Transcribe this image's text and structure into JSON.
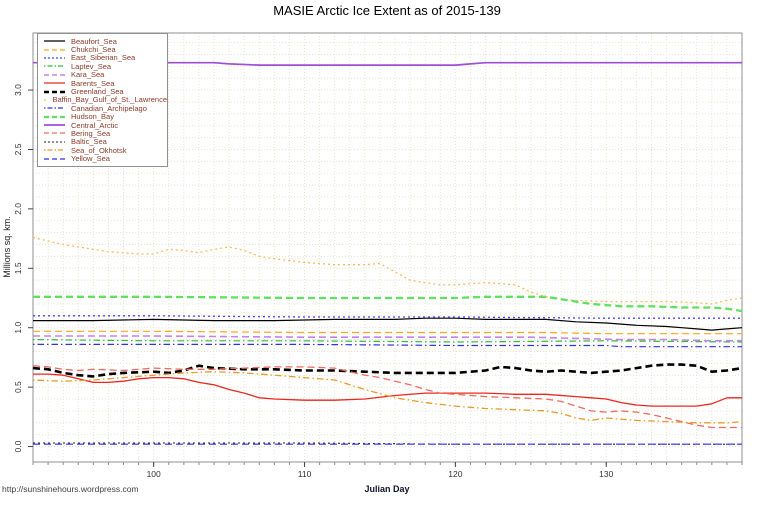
{
  "page": {
    "watermark_url": "http://sunshinehours.wordpress.com"
  },
  "chart_data": {
    "type": "line",
    "title": "MASIE Arctic Ice Extent as of 2015-139",
    "xlabel": "Julian Day",
    "ylabel": "Millions sq. km.",
    "x_range": [
      92,
      139
    ],
    "y_range": [
      -0.13,
      3.48
    ],
    "x_ticks": [
      100,
      110,
      120,
      130
    ],
    "x_tick_labels": [
      "100",
      "110",
      "120",
      "130"
    ],
    "x_minor_tick_step": 1,
    "y_ticks": [
      0.0,
      0.5,
      1.0,
      1.5,
      2.0,
      2.5,
      3.0
    ],
    "y_tick_labels": [
      "0.0",
      "0.5",
      "1.0",
      "1.5",
      "2.0",
      "2.5",
      "3.0"
    ],
    "grid": {
      "on": true,
      "x_step": 1,
      "y_step": 0.1,
      "color": "#e7e4d4"
    },
    "legend_position": "top-left",
    "legend_text_color": "#8a3a28",
    "axis_box_color": "#909090",
    "series": [
      {
        "label": "Beaufort_Sea",
        "color": "#000000",
        "dash": "solid",
        "width": 1.2,
        "x": [
          92,
          96,
          100,
          104,
          108,
          112,
          116,
          118,
          120,
          122,
          124,
          126,
          128,
          130,
          132,
          134,
          135,
          136,
          137,
          138,
          139
        ],
        "y": [
          1.06,
          1.06,
          1.07,
          1.06,
          1.06,
          1.07,
          1.07,
          1.08,
          1.08,
          1.07,
          1.07,
          1.07,
          1.05,
          1.04,
          1.02,
          1.01,
          1.0,
          0.99,
          0.98,
          0.99,
          1.0
        ]
      },
      {
        "label": "Chukchi_Sea",
        "color": "#FFA51E",
        "dash": "dashed",
        "width": 1.2,
        "x": [
          92,
          100,
          110,
          120,
          126,
          130,
          134,
          139
        ],
        "y": [
          0.97,
          0.97,
          0.96,
          0.96,
          0.96,
          0.95,
          0.95,
          0.95
        ]
      },
      {
        "label": "East_Siberian_Sea",
        "color": "#4545F0",
        "dash": "dotted",
        "width": 1.3,
        "x": [
          92,
          100,
          110,
          120,
          130,
          139
        ],
        "y": [
          1.1,
          1.1,
          1.09,
          1.09,
          1.08,
          1.08
        ]
      },
      {
        "label": "Laptev_Sea",
        "color": "#2EBE2E",
        "dash": "dashdot",
        "width": 1.2,
        "x": [
          92,
          100,
          110,
          120,
          130,
          139
        ],
        "y": [
          0.9,
          0.89,
          0.89,
          0.88,
          0.89,
          0.88
        ]
      },
      {
        "label": "Kara_Sea",
        "color": "#C383EB",
        "dash": "dashed",
        "width": 1.6,
        "x": [
          92,
          100,
          110,
          120,
          125,
          128,
          131,
          134,
          137,
          139
        ],
        "y": [
          0.93,
          0.93,
          0.92,
          0.92,
          0.92,
          0.91,
          0.9,
          0.9,
          0.89,
          0.89
        ]
      },
      {
        "label": "Barents_Sea",
        "color": "#E8281E",
        "dash": "solid",
        "width": 1.3,
        "x": [
          92,
          93,
          94,
          95,
          96,
          97,
          98,
          99,
          100,
          101,
          102,
          103,
          104,
          105,
          106,
          107,
          108,
          110,
          112,
          114,
          116,
          118,
          120,
          122,
          124,
          126,
          128,
          129,
          130,
          131,
          132,
          133,
          134,
          135,
          136,
          137,
          138,
          139
        ],
        "y": [
          0.61,
          0.61,
          0.6,
          0.57,
          0.54,
          0.54,
          0.55,
          0.57,
          0.58,
          0.58,
          0.57,
          0.54,
          0.52,
          0.48,
          0.45,
          0.41,
          0.4,
          0.39,
          0.39,
          0.4,
          0.43,
          0.45,
          0.45,
          0.45,
          0.44,
          0.44,
          0.42,
          0.41,
          0.4,
          0.37,
          0.35,
          0.34,
          0.34,
          0.34,
          0.34,
          0.36,
          0.41,
          0.41
        ]
      },
      {
        "label": "Greenland_Sea",
        "color": "#000000",
        "dash": "dashed",
        "width": 2.6,
        "x": [
          92,
          93,
          94,
          95,
          96,
          97,
          98,
          100,
          101,
          102,
          103,
          104,
          106,
          108,
          110,
          112,
          114,
          116,
          118,
          120,
          121,
          122,
          123,
          124,
          125,
          126,
          127,
          128,
          129,
          130,
          131,
          132,
          133,
          134,
          135,
          136,
          137,
          138,
          139
        ],
        "y": [
          0.66,
          0.65,
          0.62,
          0.6,
          0.59,
          0.61,
          0.62,
          0.63,
          0.62,
          0.64,
          0.68,
          0.66,
          0.65,
          0.65,
          0.64,
          0.64,
          0.63,
          0.62,
          0.62,
          0.62,
          0.63,
          0.64,
          0.67,
          0.66,
          0.64,
          0.63,
          0.64,
          0.63,
          0.62,
          0.63,
          0.64,
          0.66,
          0.68,
          0.69,
          0.69,
          0.68,
          0.63,
          0.64,
          0.66
        ]
      },
      {
        "label": "Baffin_Bay_Gulf_of_St._Lawrence",
        "color": "#FFB85C",
        "dash": "dotted",
        "width": 1.3,
        "x": [
          92,
          93,
          94,
          95,
          96,
          97,
          98,
          99,
          100,
          101,
          102,
          103,
          104,
          105,
          106,
          107,
          108,
          110,
          112,
          114,
          115,
          116,
          117,
          118,
          119,
          120,
          121,
          122,
          123,
          124,
          125,
          126,
          127,
          128,
          130,
          132,
          134,
          136,
          137,
          138,
          139
        ],
        "y": [
          1.76,
          1.73,
          1.7,
          1.68,
          1.66,
          1.64,
          1.63,
          1.62,
          1.62,
          1.66,
          1.65,
          1.63,
          1.66,
          1.68,
          1.65,
          1.6,
          1.58,
          1.55,
          1.53,
          1.53,
          1.54,
          1.47,
          1.4,
          1.38,
          1.36,
          1.36,
          1.37,
          1.38,
          1.37,
          1.36,
          1.3,
          1.26,
          1.24,
          1.23,
          1.22,
          1.22,
          1.22,
          1.21,
          1.2,
          1.23,
          1.25
        ]
      },
      {
        "label": "Canadian_Archipelago",
        "color": "#3030E8",
        "dash": "dashdot",
        "width": 1.2,
        "x": [
          92,
          100,
          110,
          120,
          126,
          130,
          131,
          135,
          139
        ],
        "y": [
          0.86,
          0.86,
          0.86,
          0.85,
          0.85,
          0.85,
          0.84,
          0.84,
          0.84
        ]
      },
      {
        "label": "Hudson_Bay",
        "color": "#5FE05F",
        "dash": "dashed",
        "width": 2.3,
        "x": [
          92,
          100,
          110,
          118,
          120,
          122,
          125,
          126,
          127,
          128,
          129,
          130,
          131,
          133,
          135,
          137,
          138,
          139
        ],
        "y": [
          1.26,
          1.26,
          1.25,
          1.25,
          1.25,
          1.26,
          1.26,
          1.26,
          1.24,
          1.22,
          1.2,
          1.19,
          1.18,
          1.18,
          1.17,
          1.17,
          1.16,
          1.14
        ]
      },
      {
        "label": "Central_Arctic",
        "color": "#9D50D5",
        "dash": "solid",
        "width": 1.7,
        "x": [
          92,
          100,
          104,
          105,
          107,
          110,
          115,
          120,
          121,
          122,
          130,
          139
        ],
        "y": [
          3.23,
          3.23,
          3.23,
          3.22,
          3.21,
          3.21,
          3.21,
          3.21,
          3.22,
          3.23,
          3.23,
          3.23
        ]
      },
      {
        "label": "Bering_Sea",
        "color": "#F06A60",
        "dash": "dashed",
        "width": 1.3,
        "x": [
          92,
          93,
          94,
          95,
          96,
          98,
          100,
          102,
          104,
          106,
          108,
          110,
          112,
          113,
          114,
          115,
          116,
          117,
          118,
          119,
          120,
          122,
          124,
          126,
          127,
          128,
          129,
          130,
          131,
          132,
          133,
          134,
          135,
          136,
          137,
          139
        ],
        "y": [
          0.68,
          0.67,
          0.65,
          0.64,
          0.65,
          0.64,
          0.66,
          0.65,
          0.65,
          0.66,
          0.67,
          0.67,
          0.66,
          0.63,
          0.6,
          0.58,
          0.55,
          0.52,
          0.48,
          0.45,
          0.44,
          0.42,
          0.41,
          0.4,
          0.38,
          0.34,
          0.3,
          0.29,
          0.3,
          0.29,
          0.27,
          0.24,
          0.21,
          0.18,
          0.16,
          0.16
        ]
      },
      {
        "label": "Baltic_Sea",
        "color": "#222222",
        "dash": "dotted",
        "width": 1.1,
        "x": [
          92,
          100,
          110,
          120,
          130,
          139
        ],
        "y": [
          0.03,
          0.03,
          0.03,
          0.02,
          0.02,
          0.02
        ]
      },
      {
        "label": "Sea_of_Okhotsk",
        "color": "#E89A28",
        "dash": "dashdot",
        "width": 1.3,
        "x": [
          92,
          94,
          96,
          98,
          100,
          102,
          104,
          106,
          108,
          110,
          112,
          114,
          116,
          118,
          120,
          122,
          124,
          126,
          127,
          128,
          129,
          130,
          132,
          134,
          136,
          138,
          139
        ],
        "y": [
          0.56,
          0.55,
          0.56,
          0.58,
          0.6,
          0.62,
          0.63,
          0.62,
          0.6,
          0.58,
          0.56,
          0.48,
          0.41,
          0.37,
          0.34,
          0.32,
          0.31,
          0.3,
          0.28,
          0.24,
          0.22,
          0.24,
          0.22,
          0.21,
          0.2,
          0.2,
          0.21
        ]
      },
      {
        "label": "Yellow_Sea",
        "color": "#5050F5",
        "dash": "dashed",
        "width": 1.4,
        "x": [
          92,
          100,
          110,
          120,
          130,
          139
        ],
        "y": [
          0.02,
          0.02,
          0.02,
          0.02,
          0.02,
          0.02
        ]
      }
    ]
  }
}
